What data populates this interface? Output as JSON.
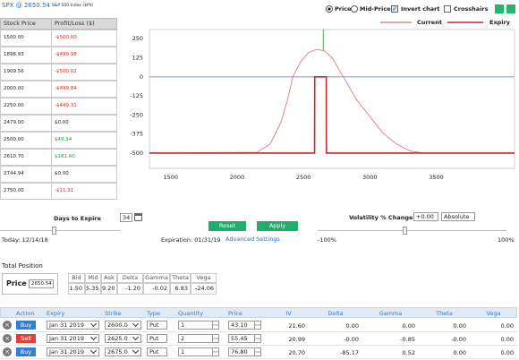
{
  "header": {
    "symbol": "SPX @ 2650.54",
    "index_name": "S&P 500 Index ($PX)"
  },
  "pl_table": {
    "columns": [
      "Stock Price",
      "Profit/Loss ($)"
    ],
    "rows": [
      [
        "1500.00",
        "-$500.00"
      ],
      [
        "1898.93",
        "-$499.98"
      ],
      [
        "1909.56",
        "-$500.02"
      ],
      [
        "2000.00",
        "-$499.84"
      ],
      [
        "2250.00",
        "-$449.31"
      ],
      [
        "2479.00",
        "$0.00"
      ],
      [
        "2500.00",
        "$49.34"
      ],
      [
        "2610.70",
        "$181.60"
      ],
      [
        "2744.94",
        "$0.00"
      ],
      [
        "2750.00",
        "-$11.31"
      ]
    ]
  },
  "top_controls": {
    "price": "Price",
    "mid_price": "Mid-Price",
    "invert_chart": "Invert chart",
    "crosshairs": "Crosshairs"
  },
  "chart_data": {
    "type": "line",
    "xlim": [
      1340,
      4090
    ],
    "ylim": [
      -600,
      310
    ],
    "xticks": [
      1500,
      2000,
      2500,
      3000,
      3500
    ],
    "yticks": [
      250,
      125,
      0,
      -125,
      -250,
      -375,
      -500
    ],
    "grid": false,
    "series": [
      {
        "name": "Current",
        "color": "#d98a8a",
        "x": [
          1340,
          2150,
          2250,
          2330,
          2380,
          2420,
          2480,
          2540,
          2600,
          2660,
          2720,
          2800,
          2900,
          3000,
          3100,
          3200,
          3300,
          3400,
          4090
        ],
        "values": [
          -500,
          -495,
          -440,
          -300,
          -150,
          0,
          100,
          160,
          180,
          170,
          120,
          0,
          -150,
          -260,
          -370,
          -440,
          -485,
          -500,
          -500
        ]
      },
      {
        "name": "Expiry",
        "color": "#c42a2a",
        "x": [
          1340,
          2584,
          2585,
          2672,
          2673,
          4090
        ],
        "values": [
          -500,
          -500,
          0,
          0,
          -500,
          -500
        ]
      }
    ],
    "reference_line": {
      "value": 0,
      "color": "#7fa8ec"
    },
    "price_line": {
      "value": 2650.54,
      "color": "#5fd35f"
    }
  },
  "settings": {
    "days_label": "Days to Expire",
    "days_value": "34",
    "reset": "Reset",
    "apply": "Apply",
    "advanced": "Advanced Settings",
    "vol_label": "Volatility % Change",
    "vol_value": "+0.00",
    "vol_mode": "Absolute",
    "today": "Today: 12/14/18",
    "expiration": "Expiration: 01/31/19",
    "vol_min": "-100%",
    "vol_max": "100%"
  },
  "total_position": {
    "title": "Total Position",
    "price_label": "Price",
    "price_value": "2650.54",
    "columns": [
      "Bid",
      "Mid",
      "Ask",
      "Delta",
      "Gamma",
      "Theta",
      "Vega"
    ],
    "values": [
      "1.50",
      "5.35",
      "9.20",
      "-1.20",
      "-0.02",
      "6.83",
      "-24.06"
    ]
  },
  "positions": {
    "columns": [
      "Action",
      "Expiry",
      "Strike",
      "Type",
      "Quantity",
      "Price",
      "IV",
      "Delta",
      "Gamma",
      "Theta",
      "Vega"
    ],
    "rows": [
      {
        "action_color": "#2f7fd8",
        "cells": [
          "Buy",
          "Jan 31 2019",
          "2600.0",
          "Put",
          "1",
          "43.10",
          "21.60",
          "0.00",
          "0.00",
          "0.00",
          "0.00"
        ]
      },
      {
        "action_color": "#e0403c",
        "cells": [
          "Sell",
          "Jan 31 2019",
          "2625.0",
          "Put",
          "2",
          "55.45",
          "20.99",
          "-0.00",
          "-0.85",
          "-0.00",
          "0.00"
        ]
      },
      {
        "action_color": "#2f7fd8",
        "cells": [
          "Buy",
          "Jan 31 2019",
          "2675.0",
          "Put",
          "1",
          "76.80",
          "20.70",
          "-85.17",
          "0.52",
          "0.00",
          "0.00"
        ]
      }
    ]
  }
}
